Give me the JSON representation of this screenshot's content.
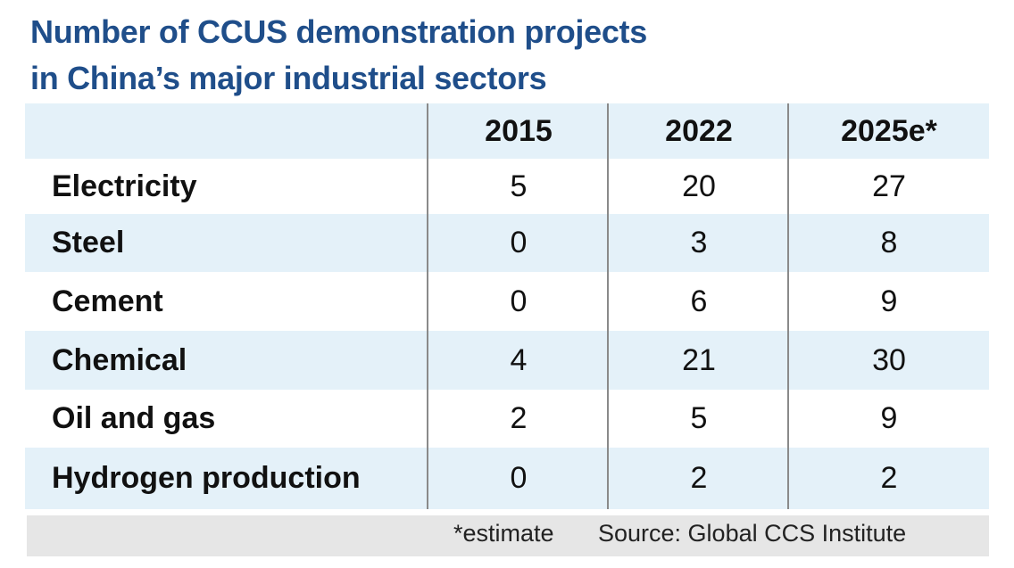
{
  "chart_data": {
    "type": "table",
    "title_lines": [
      "Number of CCUS demonstration projects",
      "in China’s major industrial sectors"
    ],
    "columns": [
      "2015",
      "2022",
      "2025e*"
    ],
    "rows": [
      {
        "label": "Electricity",
        "values": [
          "5",
          "20",
          "27"
        ]
      },
      {
        "label": "Steel",
        "values": [
          "0",
          "3",
          "8"
        ]
      },
      {
        "label": "Cement",
        "values": [
          "0",
          "6",
          "9"
        ]
      },
      {
        "label": "Chemical",
        "values": [
          "4",
          "21",
          "30"
        ]
      },
      {
        "label": "Oil and gas",
        "values": [
          "2",
          "5",
          "9"
        ]
      },
      {
        "label": "Hydrogen production",
        "values": [
          "0",
          "2",
          "2"
        ]
      }
    ],
    "footnote": "*estimate",
    "source": "Source: Global CCS Institute"
  },
  "colors": {
    "title": "#1f4e8a",
    "shaded_row": "#e4f1f9",
    "footer_bg": "#e6e6e6",
    "divider": "#8a8a8a"
  }
}
